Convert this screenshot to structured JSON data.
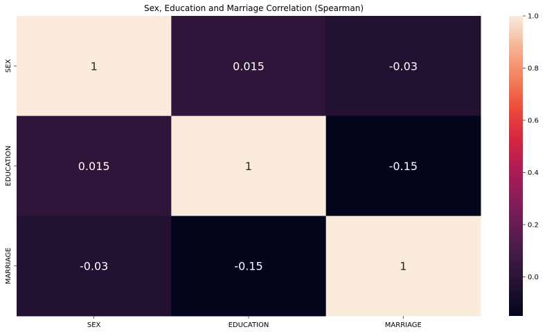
{
  "chart_data": {
    "type": "heatmap",
    "title": "Sex, Education and Marriage Correlation (Spearman)",
    "x_labels": [
      "SEX",
      "EDUCATION",
      "MARRIAGE"
    ],
    "y_labels": [
      "SEX",
      "EDUCATION",
      "MARRIAGE"
    ],
    "values": [
      [
        1,
        0.015,
        -0.03
      ],
      [
        0.015,
        1,
        -0.15
      ],
      [
        -0.03,
        -0.15,
        1
      ]
    ],
    "cell_labels": [
      [
        "1",
        "0.015",
        "-0.03"
      ],
      [
        "0.015",
        "1",
        "-0.15"
      ],
      [
        "-0.03",
        "-0.15",
        "1"
      ]
    ],
    "colormap": "rocket",
    "vmin": -0.15,
    "vmax": 1.0,
    "colorbar_ticks": [
      0.0,
      0.2,
      0.4,
      0.6,
      0.8,
      1.0
    ],
    "colorbar_tick_labels": [
      "0.0",
      "0.2",
      "0.4",
      "0.6",
      "0.8",
      "1.0"
    ]
  }
}
